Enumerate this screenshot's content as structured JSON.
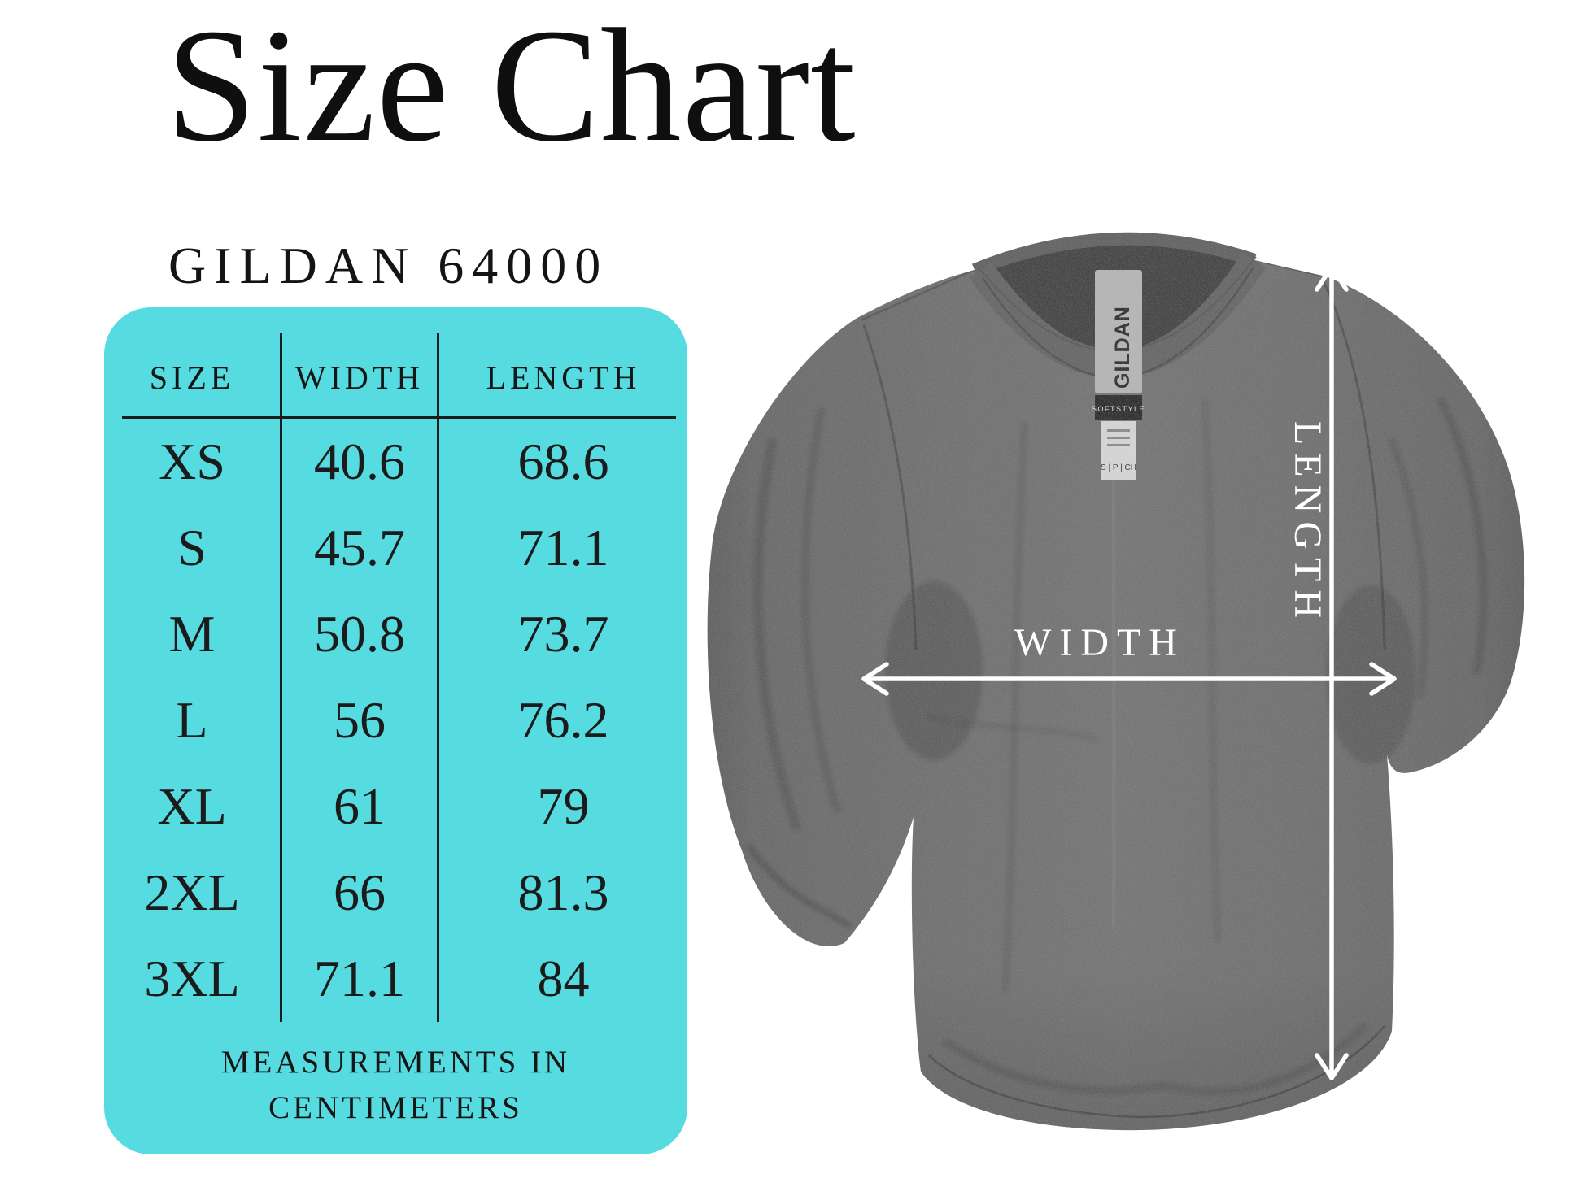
{
  "header": {
    "title": "Size Chart",
    "subtitle": "GILDAN 64000"
  },
  "panel": {
    "bg": "#56dbe0",
    "text_color": "#1d1d1d"
  },
  "table": {
    "footnote": [
      "MEASUREMENTS IN",
      "CENTIMETERS"
    ]
  },
  "diagram": {
    "width_label": "WIDTH",
    "length_label": "LENGTH",
    "arrow_color": "#ffffff",
    "shirt_color": "#6d6d6d",
    "tag": {
      "brand": "GILDAN",
      "line": "SOFTSTYLE",
      "sizes": "S | P | CH"
    }
  },
  "chart_data": {
    "type": "table",
    "title": "Size Chart",
    "subtitle": "GILDAN 64000",
    "columns": [
      "SIZE",
      "WIDTH",
      "LENGTH"
    ],
    "units": "centimeters",
    "rows": [
      [
        "XS",
        40.6,
        68.6
      ],
      [
        "S",
        45.7,
        71.1
      ],
      [
        "M",
        50.8,
        73.7
      ],
      [
        "L",
        56,
        76.2
      ],
      [
        "XL",
        61,
        79
      ],
      [
        "2XL",
        66,
        81.3
      ],
      [
        "3XL",
        71.1,
        84
      ]
    ],
    "note": "MEASUREMENTS IN CENTIMETERS"
  }
}
